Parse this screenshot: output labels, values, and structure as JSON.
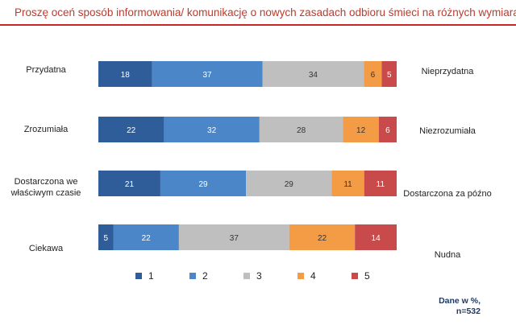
{
  "title": "Proszę oceń sposób informowania/ komunikację o nowych zasadach odbioru śmieci na różnych wymiarach:",
  "footnote": {
    "line1": "Dane w %,",
    "line2": "n=532"
  },
  "chart_data": {
    "type": "bar",
    "orientation": "horizontal-stacked-100",
    "title": "Proszę oceń sposób informowania/ komunikację o nowych zasadach odbioru śmieci na różnych wymiarach:",
    "legend_position": "bottom",
    "series_names": [
      "1",
      "2",
      "3",
      "4",
      "5"
    ],
    "colors": [
      "#2e5d9a",
      "#4a86c8",
      "#bfbfbf",
      "#f39c45",
      "#c94a4a"
    ],
    "rows": [
      {
        "left": "Przydatna",
        "right": "Nieprzydatna",
        "values": [
          18,
          37,
          34,
          6,
          5
        ]
      },
      {
        "left": "Zrozumiała",
        "right": "Niezrozumiała",
        "values": [
          22,
          32,
          28,
          12,
          6
        ]
      },
      {
        "left": "Dostarczona we właściwym czasie",
        "left_line1": "Dostarczona we",
        "left_line2": "właściwym czasie",
        "right": "Dostarczona za późno",
        "values": [
          21,
          29,
          29,
          11,
          11
        ]
      },
      {
        "left": "Ciekawa",
        "right": "Nudna",
        "values": [
          5,
          22,
          37,
          22,
          14
        ]
      }
    ]
  }
}
